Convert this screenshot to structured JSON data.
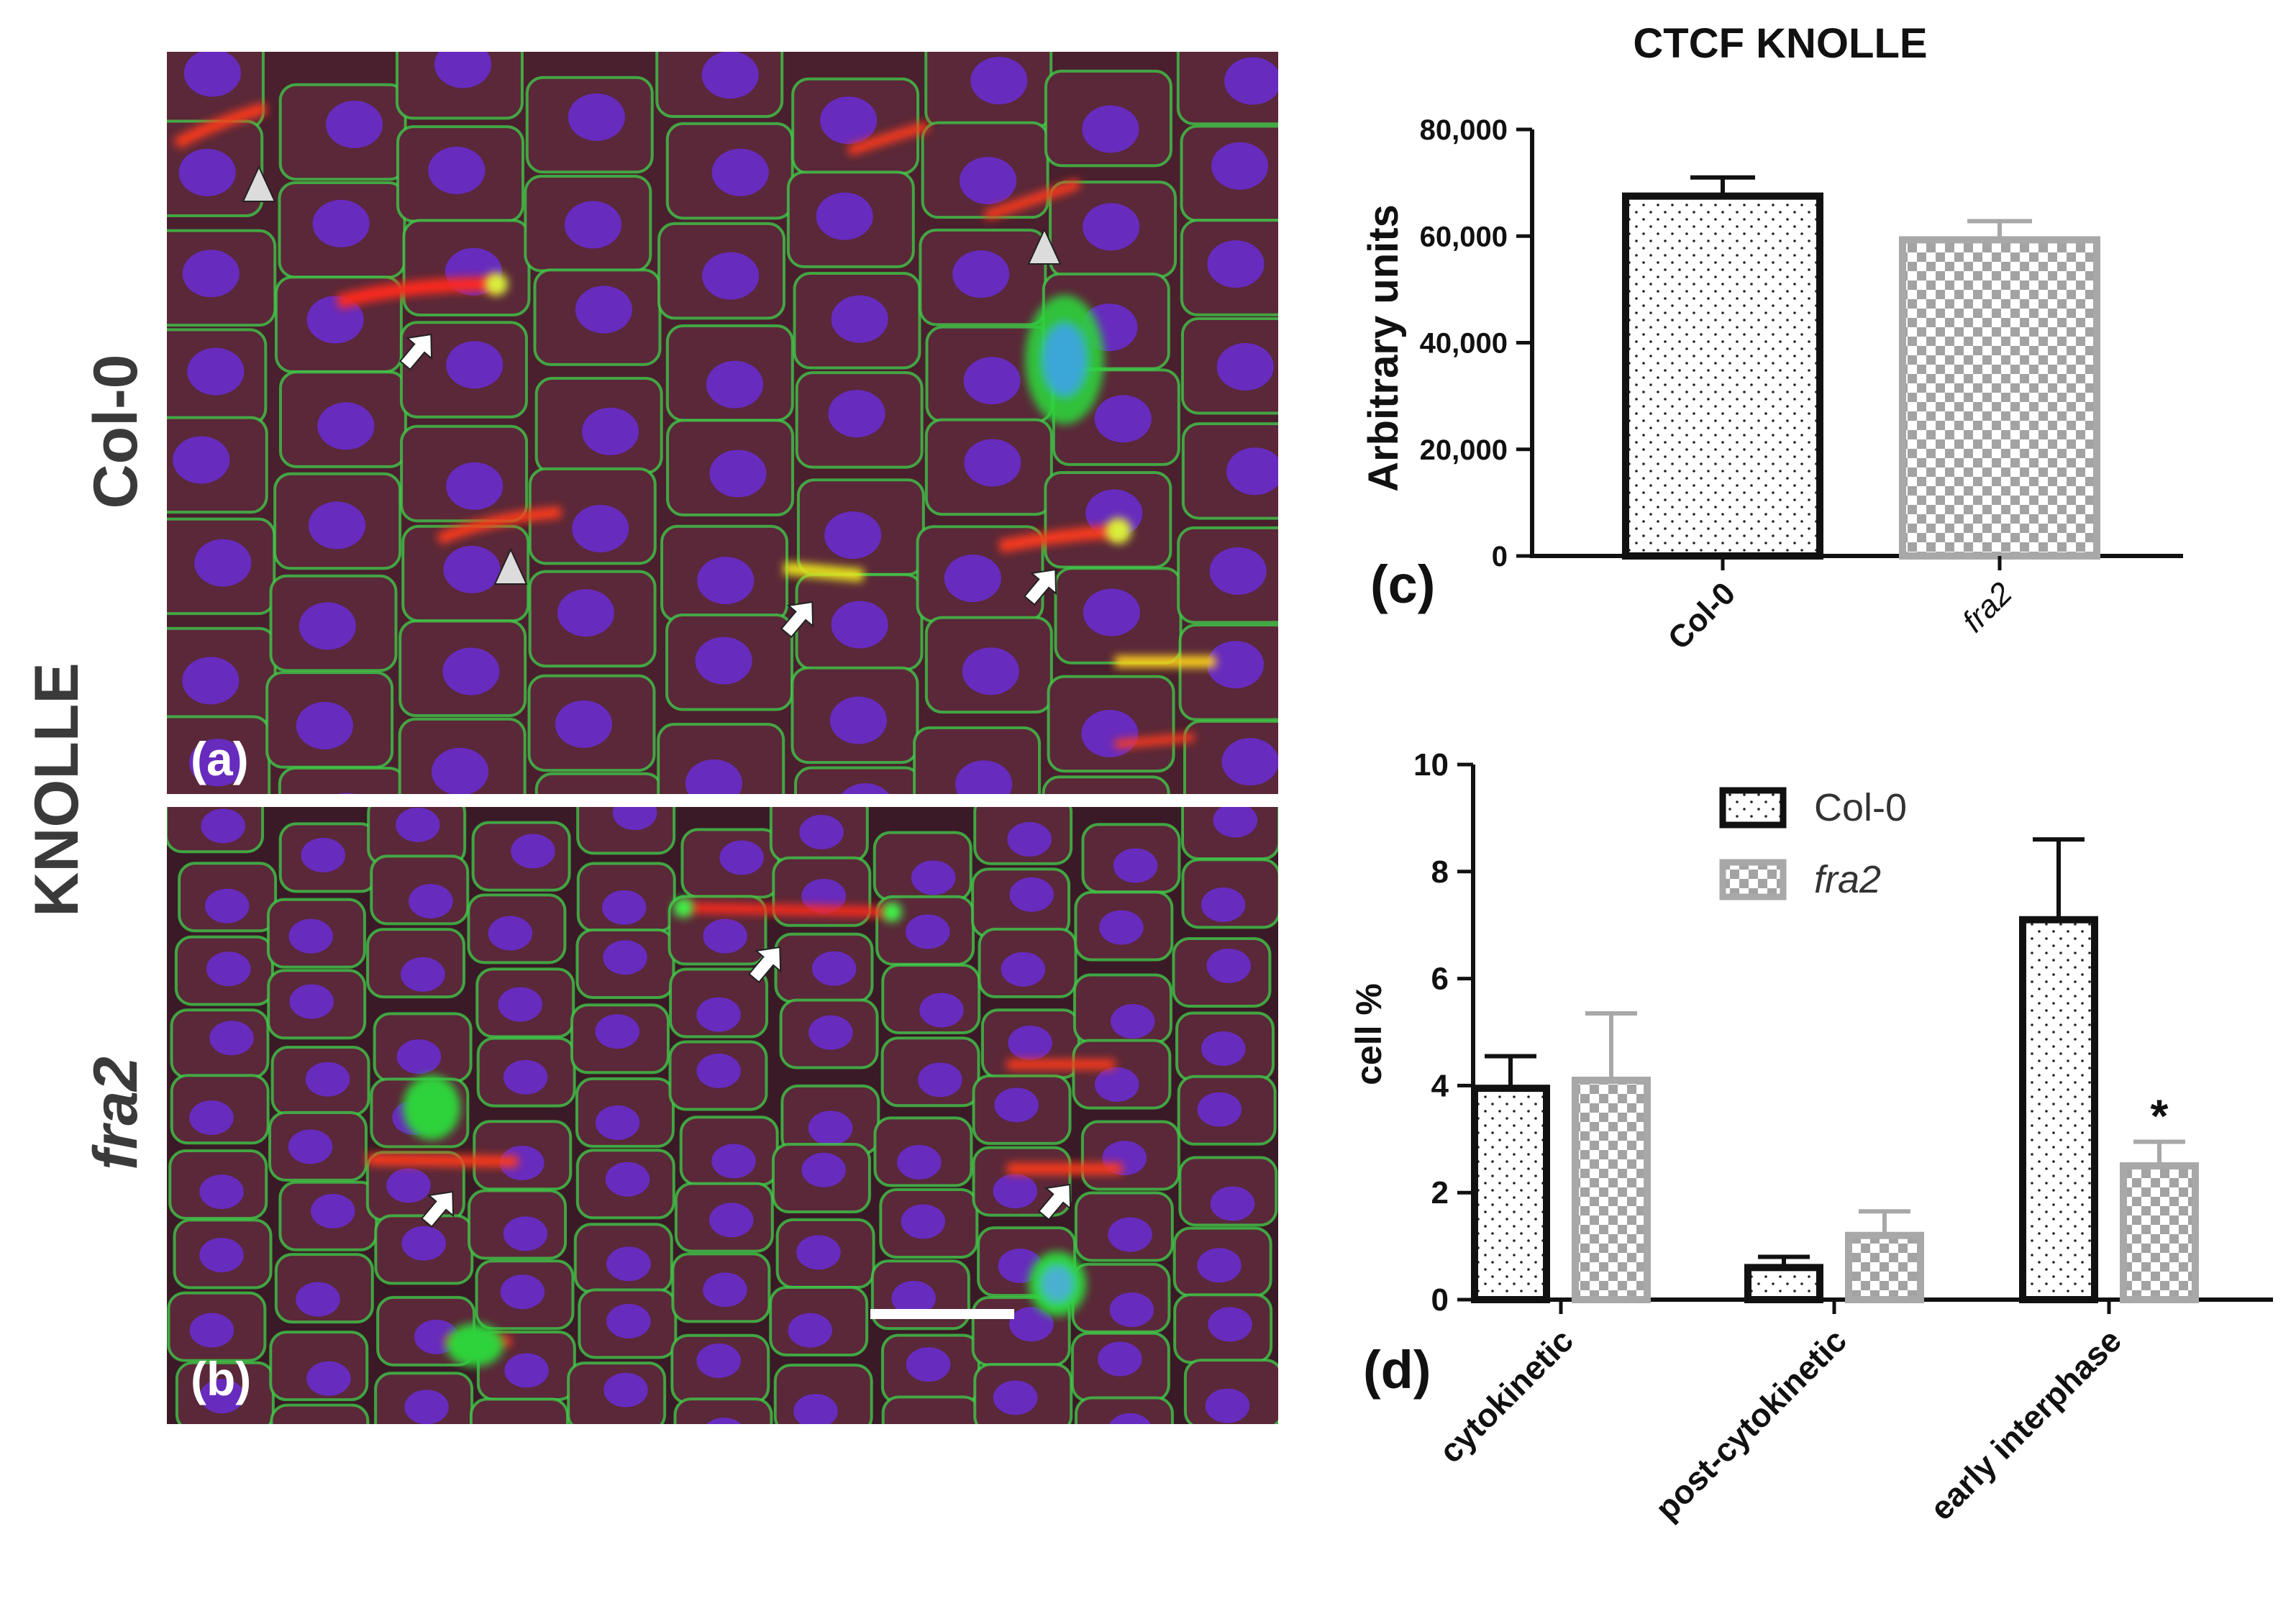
{
  "side_labels": {
    "group": "KNOLLE",
    "row_a": "Col-0",
    "row_b": "fra2"
  },
  "panel_labels": {
    "a": "(a)",
    "b": "(b)",
    "c": "(c)",
    "d": "(d)"
  },
  "micrograph_colors": {
    "background": "#4a1f2e",
    "cell_wall": "#3fd14a",
    "nucleus": "#6a2bd6",
    "cell_plate": "#ff2a1a"
  },
  "chart_data": [
    {
      "type": "bar",
      "title": "CTCF KNOLLE",
      "xlabel": "",
      "ylabel": "Arbitrary units",
      "categories": [
        "Col-0",
        "fra2"
      ],
      "values": [
        67500,
        59300
      ],
      "errors": [
        3500,
        3500
      ],
      "ylim": [
        0,
        80000
      ],
      "yticks": [
        "0",
        "20,000",
        "40,000",
        "60,000",
        "80,000"
      ],
      "ytick_values": [
        0,
        20000,
        40000,
        60000,
        80000
      ],
      "bar_styles": [
        "dots-black",
        "checker-gray"
      ],
      "grid": false
    },
    {
      "type": "bar",
      "title": "",
      "xlabel": "",
      "ylabel": "cell %",
      "categories": [
        "cytokinetic",
        "post-cytokinetic",
        "early interphase"
      ],
      "series": [
        {
          "name": "Col-0",
          "values": [
            3.95,
            0.6,
            7.1
          ],
          "errors": [
            0.6,
            0.2,
            1.5
          ],
          "style": "dots-black"
        },
        {
          "name": "fra2",
          "values": [
            4.1,
            1.2,
            2.5
          ],
          "errors": [
            1.25,
            0.45,
            0.45
          ],
          "style": "checker-gray"
        }
      ],
      "annotations": [
        {
          "category": "early interphase",
          "series": "fra2",
          "text": "*"
        }
      ],
      "ylim": [
        0,
        10
      ],
      "yticks": [
        "0",
        "2",
        "4",
        "6",
        "8",
        "10"
      ],
      "ytick_values": [
        0,
        2,
        4,
        6,
        8,
        10
      ],
      "legend": "top-center",
      "grid": false
    }
  ]
}
